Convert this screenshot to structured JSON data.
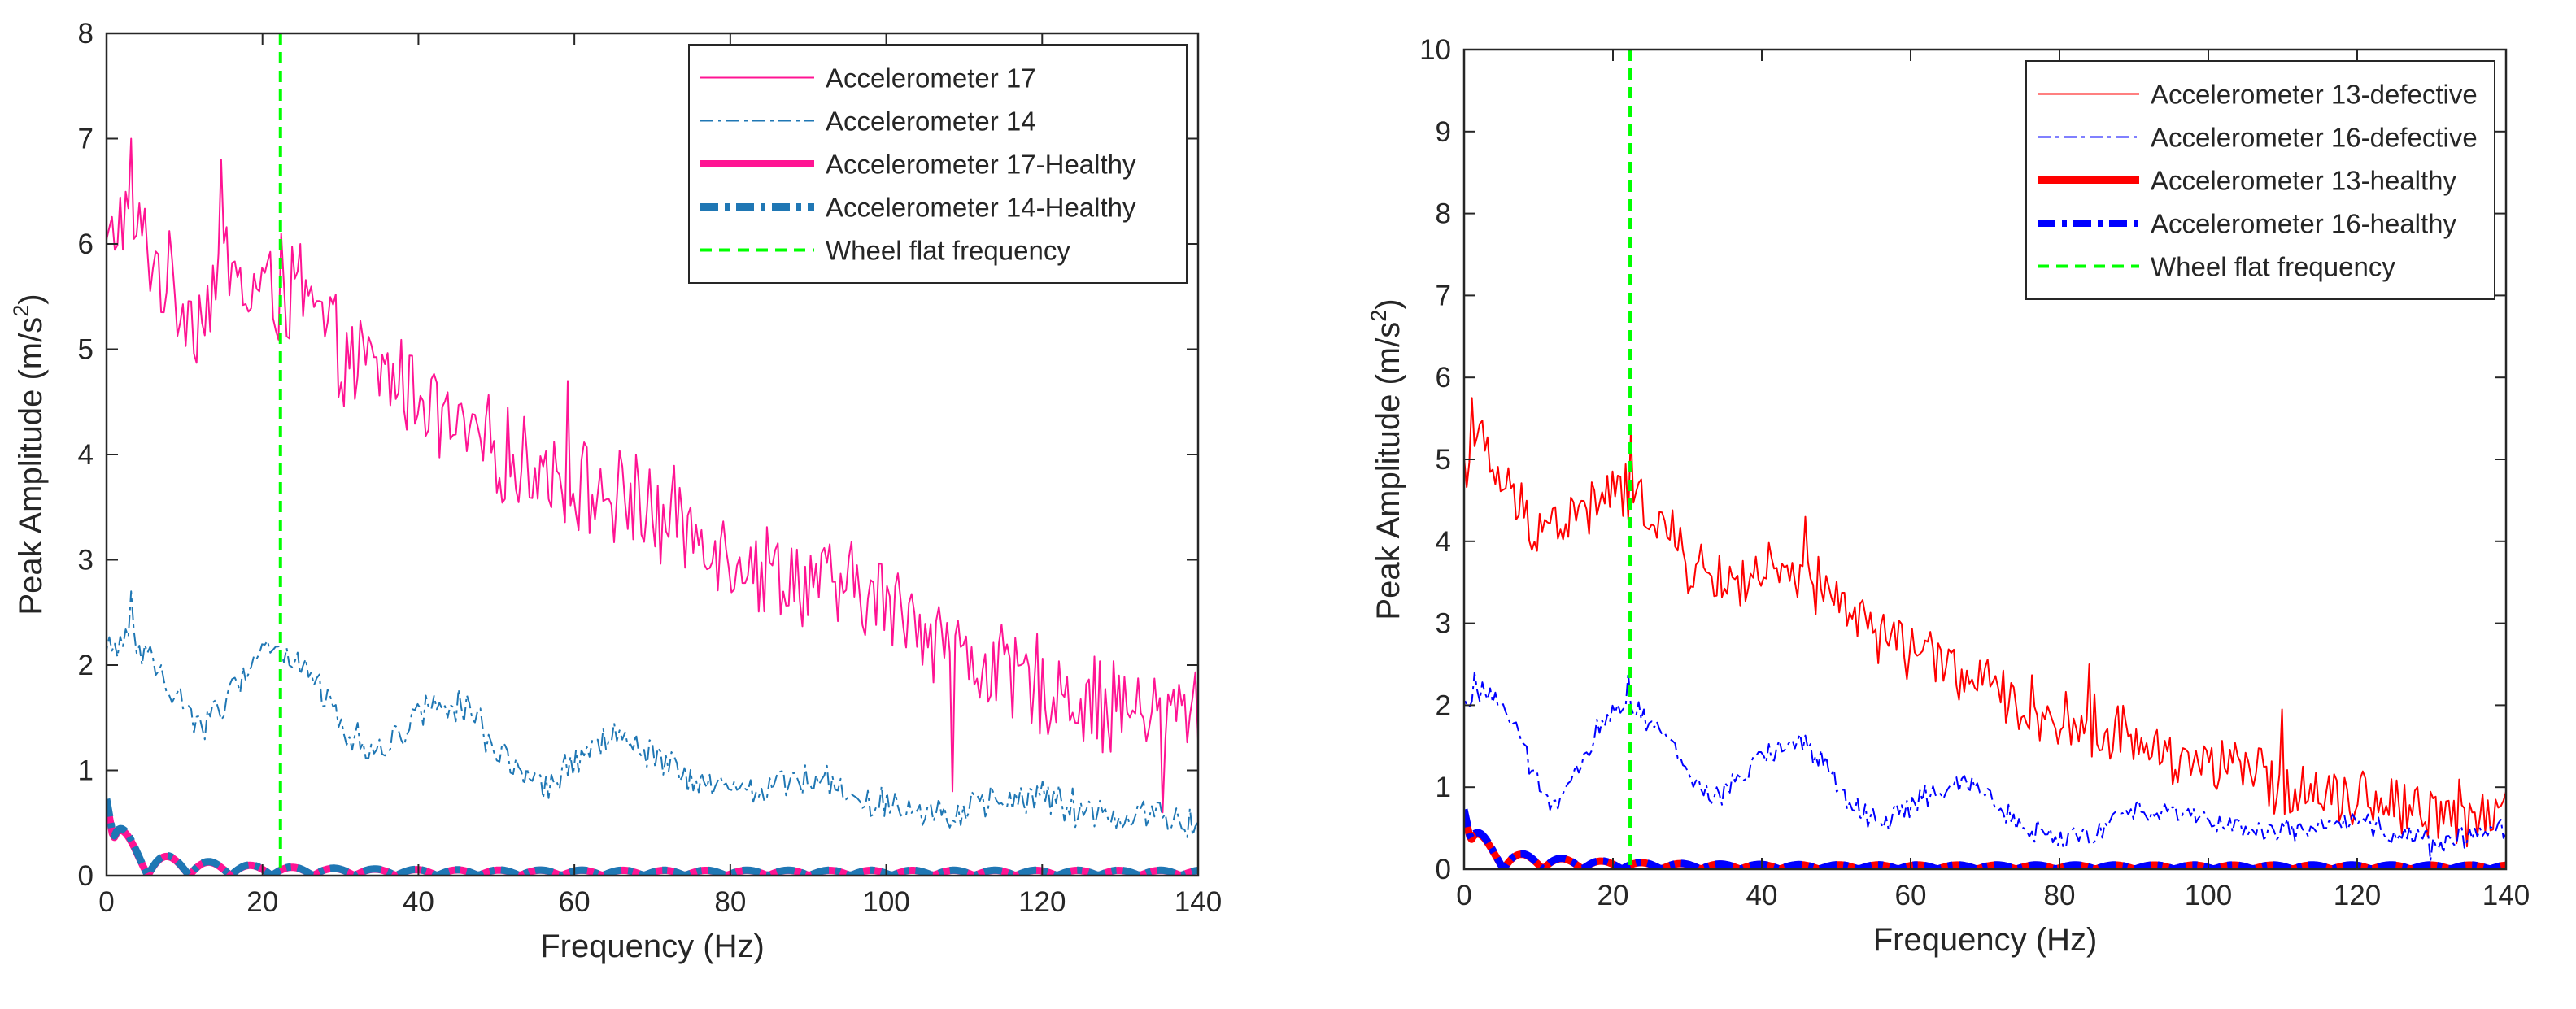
{
  "chart_data": [
    {
      "type": "line",
      "xlabel": "Frequency (Hz)",
      "ylabel_main": "Peak Amplitude (m/s",
      "ylabel_sup": "2",
      "ylabel_close": ")",
      "xlim": [
        0,
        140
      ],
      "ylim": [
        0,
        8
      ],
      "xticks": [
        0,
        20,
        40,
        60,
        80,
        100,
        120,
        140
      ],
      "yticks": [
        0,
        1,
        2,
        3,
        4,
        5,
        6,
        7,
        8
      ],
      "legend_position": "top-right",
      "wheel_flat_x": 22.3,
      "series": [
        {
          "name": "Accelerometer 17",
          "color": "#ff1493",
          "style": "solid",
          "weight": "thin",
          "anchors_x": [
            0,
            2,
            5,
            8,
            12,
            15,
            18,
            20,
            22,
            25,
            28,
            30,
            35,
            40,
            45,
            50,
            55,
            60,
            65,
            70,
            75,
            80,
            85,
            90,
            95,
            100,
            105,
            110,
            115,
            120,
            125,
            130,
            135,
            140
          ],
          "anchors_y": [
            5.9,
            6.3,
            6.0,
            5.6,
            5.3,
            5.9,
            5.5,
            5.6,
            5.5,
            5.5,
            5.2,
            4.9,
            4.8,
            4.6,
            4.2,
            4.0,
            3.9,
            3.7,
            3.6,
            3.4,
            3.3,
            3.1,
            2.9,
            2.8,
            2.7,
            2.6,
            2.4,
            2.1,
            1.9,
            1.8,
            1.7,
            1.6,
            1.5,
            1.6
          ],
          "noise": 0.55,
          "peaks": [
            [
              3.2,
              7.0
            ],
            [
              14.8,
              6.8
            ],
            [
              22.5,
              6.1
            ],
            [
              25.0,
              6.0
            ],
            [
              59.0,
              4.7
            ],
            [
              68.0,
              4.0
            ],
            [
              108.5,
              0.8
            ],
            [
              135.5,
              0.6
            ]
          ]
        },
        {
          "name": "Accelerometer 14",
          "color": "#1f77b4",
          "style": "dashdot",
          "weight": "thin",
          "anchors_x": [
            0,
            3,
            6,
            9,
            12,
            15,
            18,
            20,
            22,
            25,
            28,
            31,
            34,
            37,
            40,
            43,
            46,
            49,
            52,
            55,
            58,
            61,
            64,
            67,
            70,
            73,
            76,
            80,
            85,
            90,
            95,
            100,
            105,
            110,
            115,
            120,
            125,
            130,
            135,
            140
          ],
          "anchors_y": [
            2.1,
            2.3,
            2.0,
            1.7,
            1.45,
            1.6,
            1.95,
            2.2,
            2.15,
            2.0,
            1.7,
            1.35,
            1.2,
            1.3,
            1.55,
            1.7,
            1.6,
            1.3,
            1.0,
            0.8,
            0.9,
            1.15,
            1.3,
            1.25,
            1.15,
            1.0,
            0.85,
            0.8,
            0.85,
            0.95,
            0.8,
            0.7,
            0.65,
            0.6,
            0.7,
            0.75,
            0.6,
            0.55,
            0.6,
            0.45
          ],
          "noise": 0.2,
          "peaks": [
            [
              3.2,
              2.7
            ]
          ]
        },
        {
          "name": "Accelerometer 17-Healthy",
          "color": "#ff1493",
          "style": "solid",
          "weight": "thick",
          "healthy": true
        },
        {
          "name": "Accelerometer 14-Healthy",
          "color": "#1f77b4",
          "style": "dashdot",
          "weight": "thick",
          "healthy": true
        },
        {
          "name": "Wheel flat frequency",
          "color": "#00ff00",
          "style": "dashed",
          "weight": "medium",
          "vertical": true
        }
      ]
    },
    {
      "type": "line",
      "xlabel": "Frequency (Hz)",
      "ylabel_main": "Peak Amplitude (m/s",
      "ylabel_sup": "2",
      "ylabel_close": ")",
      "xlim": [
        0,
        140
      ],
      "ylim": [
        0,
        10
      ],
      "xticks": [
        0,
        20,
        40,
        60,
        80,
        100,
        120,
        140
      ],
      "yticks": [
        0,
        1,
        2,
        3,
        4,
        5,
        6,
        7,
        8,
        9,
        10
      ],
      "legend_position": "top-right",
      "wheel_flat_x": 22.3,
      "series": [
        {
          "name": "Accelerometer 13-defective",
          "color": "#ff0000",
          "style": "solid",
          "weight": "thin",
          "anchors_x": [
            0,
            2,
            5,
            8,
            12,
            15,
            18,
            20,
            22,
            25,
            28,
            30,
            35,
            40,
            45,
            50,
            55,
            60,
            65,
            70,
            75,
            80,
            85,
            90,
            95,
            100,
            105,
            110,
            115,
            120,
            125,
            130,
            135,
            140
          ],
          "anchors_y": [
            4.9,
            5.2,
            4.7,
            4.3,
            4.2,
            4.3,
            4.5,
            4.6,
            4.6,
            4.4,
            4.0,
            3.7,
            3.5,
            3.6,
            3.5,
            3.3,
            2.9,
            2.7,
            2.5,
            2.2,
            2.0,
            1.8,
            1.7,
            1.6,
            1.4,
            1.3,
            1.2,
            1.0,
            1.0,
            0.9,
            0.8,
            0.75,
            0.65,
            0.75
          ],
          "noise": 0.45,
          "peaks": [
            [
              1.0,
              5.75
            ],
            [
              22.5,
              5.35
            ],
            [
              46.0,
              4.3
            ],
            [
              84.0,
              2.5
            ],
            [
              110.0,
              1.95
            ]
          ]
        },
        {
          "name": "Accelerometer 16-defective",
          "color": "#0000ff",
          "style": "dashdot",
          "weight": "thin",
          "anchors_x": [
            0,
            3,
            6,
            9,
            12,
            15,
            18,
            20,
            22,
            25,
            28,
            31,
            34,
            37,
            40,
            43,
            46,
            49,
            52,
            55,
            58,
            61,
            64,
            67,
            70,
            73,
            76,
            80,
            85,
            90,
            95,
            100,
            105,
            110,
            115,
            120,
            125,
            130,
            135,
            140
          ],
          "anchors_y": [
            2.0,
            2.2,
            1.9,
            1.2,
            0.75,
            1.1,
            1.7,
            1.95,
            2.05,
            1.8,
            1.5,
            1.05,
            0.85,
            1.1,
            1.35,
            1.55,
            1.5,
            1.2,
            0.8,
            0.6,
            0.65,
            0.85,
            0.95,
            1.0,
            0.95,
            0.7,
            0.5,
            0.35,
            0.45,
            0.7,
            0.75,
            0.6,
            0.5,
            0.45,
            0.5,
            0.55,
            0.45,
            0.35,
            0.4,
            0.45
          ],
          "noise": 0.18,
          "peaks": [
            [
              1.5,
              2.4
            ],
            [
              22.0,
              2.4
            ],
            [
              130.0,
              0.1
            ]
          ]
        },
        {
          "name": "Accelerometer 13-healthy",
          "color": "#ff0000",
          "style": "solid",
          "weight": "thick",
          "healthy": true
        },
        {
          "name": "Accelerometer 16-healthy",
          "color": "#0000ff",
          "style": "dashdot",
          "weight": "thick",
          "healthy": true
        },
        {
          "name": "Wheel flat frequency",
          "color": "#00ff00",
          "style": "dashed",
          "weight": "medium",
          "vertical": true
        }
      ]
    }
  ]
}
